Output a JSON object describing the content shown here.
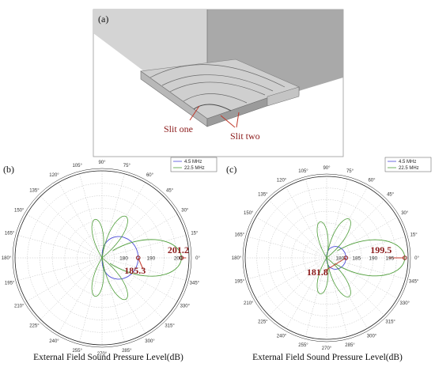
{
  "panel_a": {
    "label": "(a)",
    "slits": [
      {
        "name": "Slit one"
      },
      {
        "name": "Slit two"
      }
    ]
  },
  "chart_data": [
    {
      "type": "polar",
      "panel_label": "(b)",
      "xlabel": "External Field Sound Pressure Level(dB)",
      "angle_ticks": [
        "0°",
        "15°",
        "30°",
        "45°",
        "60°",
        "75°",
        "90°",
        "105°",
        "120°",
        "135°",
        "150°",
        "165°",
        "180°",
        "195°",
        "210°",
        "225°",
        "240°",
        "255°",
        "270°",
        "285°",
        "300°",
        "315°",
        "330°",
        "345°"
      ],
      "radial_ticks": [
        180,
        190,
        200
      ],
      "rlim": [
        172,
        204
      ],
      "series": [
        {
          "name": "4.5 MHz",
          "color": "#4a4ad8"
        },
        {
          "name": "22.5 MHz",
          "color": "#4f9e3a"
        }
      ],
      "annotations": [
        {
          "text": "201.2",
          "angle_deg": 0,
          "r": 201.2
        },
        {
          "text": "185.3",
          "angle_deg": 0,
          "r": 185.3
        }
      ]
    },
    {
      "type": "polar",
      "panel_label": "(c)",
      "xlabel": "External Field Sound Pressure Level(dB)",
      "angle_ticks": [
        "0°",
        "15°",
        "30°",
        "45°",
        "60°",
        "75°",
        "90°",
        "105°",
        "120°",
        "135°",
        "150°",
        "165°",
        "180°",
        "195°",
        "210°",
        "225°",
        "240°",
        "255°",
        "270°",
        "285°",
        "300°",
        "315°",
        "330°",
        "345°"
      ],
      "radial_ticks": [
        180,
        185,
        190,
        195
      ],
      "rlim": [
        176,
        200.5
      ],
      "series": [
        {
          "name": "4.5 MHz",
          "color": "#4a4ad8"
        },
        {
          "name": "22.5 MHz",
          "color": "#4f9e3a"
        }
      ],
      "annotations": [
        {
          "text": "199.5",
          "angle_deg": 0,
          "r": 199.5
        },
        {
          "text": "181.8",
          "angle_deg": 0,
          "r": 181.8
        }
      ]
    }
  ],
  "colors": {
    "annotation": "#8b1a1a",
    "arrow": "#c0392b",
    "grid": "#b0b0b0"
  }
}
